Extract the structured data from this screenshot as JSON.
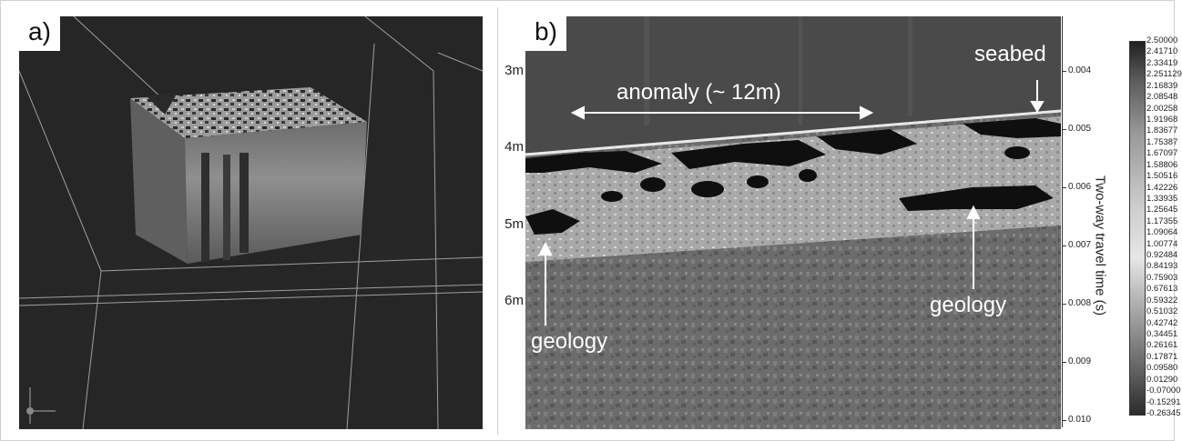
{
  "panel_a": {
    "tag": "a)"
  },
  "panel_b": {
    "tag": "b)",
    "annotations": {
      "anomaly": "anomaly (~ 12m)",
      "seabed": "seabed",
      "geology_left": "geology",
      "geology_right": "geology"
    },
    "depth_labels": [
      "3m",
      "4m",
      "5m",
      "6m"
    ],
    "time_axis": {
      "title": "Two-way travel time (s)",
      "ticks": [
        "0.004",
        "0.005",
        "0.006",
        "0.007",
        "0.008",
        "0.009",
        "0.010"
      ]
    },
    "colorbar_labels": [
      "2.50000",
      "2.41710",
      "2.33419",
      "2.251129",
      "2.16839",
      "2.08548",
      "2.00258",
      "1.91968",
      "1.83677",
      "1.75387",
      "1.67097",
      "1.58806",
      "1.50516",
      "1.42226",
      "1.33935",
      "1.25645",
      "1.17355",
      "1.09064",
      "1.00774",
      "0.92484",
      "0.84193",
      "0.75903",
      "0.67613",
      "0.59322",
      "0.51032",
      "0.42742",
      "0.34451",
      "0.26161",
      "0.17871",
      "0.09580",
      "0.01290",
      "-0.07000",
      "-0.15291",
      "-0.26345"
    ]
  }
}
